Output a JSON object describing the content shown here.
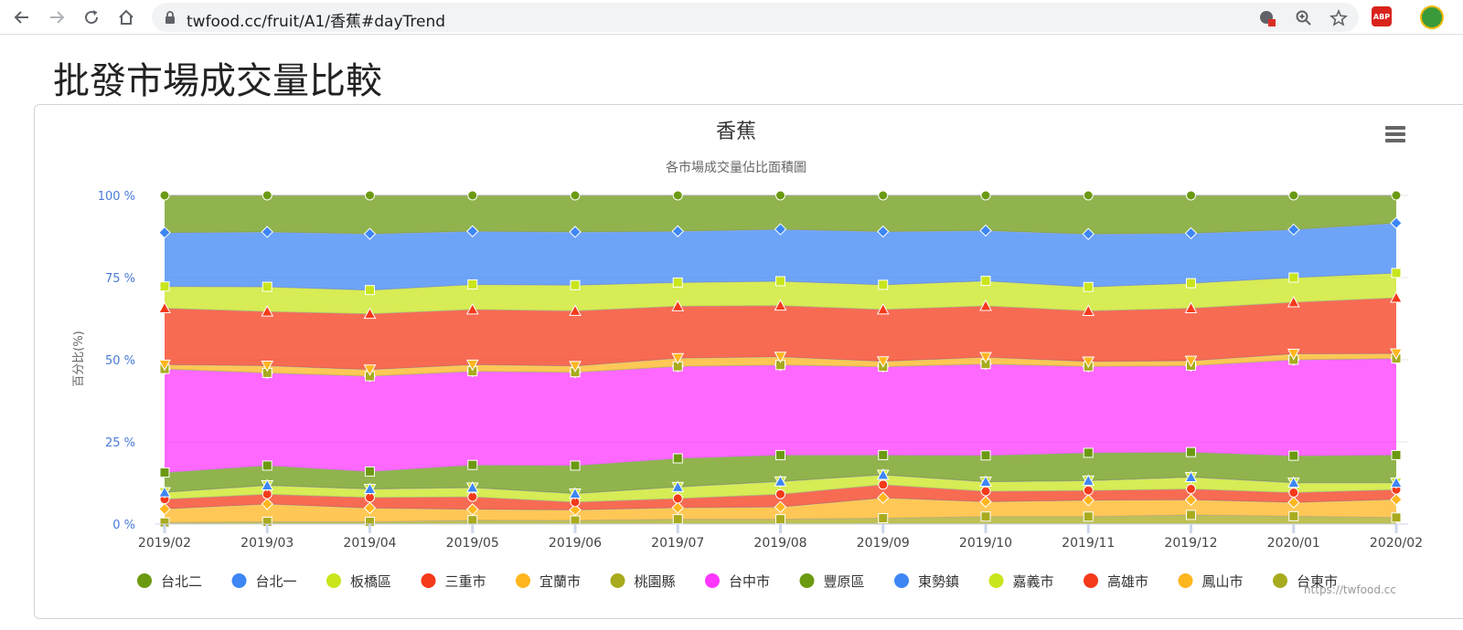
{
  "browser": {
    "url": "twfood.cc/fruit/A1/香蕉#dayTrend"
  },
  "page": {
    "title": "批發市場成交量比較"
  },
  "watermark": "https://twfood.cc",
  "chart_data": {
    "type": "area",
    "stacking": "percent",
    "title": "香蕉",
    "subtitle": "各市場成交量佔比面積圖",
    "ylabel": "百分比(%)",
    "xlabel": "",
    "ylim": [
      0,
      100
    ],
    "yticks": [
      "0 %",
      "25 %",
      "50 %",
      "75 %",
      "100 %"
    ],
    "grid": true,
    "legend_position": "bottom",
    "categories": [
      "2019/02",
      "2019/03",
      "2019/04",
      "2019/05",
      "2019/06",
      "2019/07",
      "2019/08",
      "2019/09",
      "2019/10",
      "2019/11",
      "2019/12",
      "2020/01",
      "2020/02"
    ],
    "series_stack_bottom_to_top": [
      {
        "name": "台東市",
        "color": "#a8ab1e",
        "marker": "square",
        "values": [
          0.5,
          0.7,
          0.7,
          1.2,
          1.1,
          1.5,
          1.5,
          1.8,
          2.3,
          2.3,
          2.8,
          2.4,
          2.0
        ]
      },
      {
        "name": "鳳山市",
        "color": "#ffb61e",
        "marker": "diamond",
        "values": [
          4.1,
          5.4,
          4.2,
          3.3,
          3.2,
          3.5,
          3.7,
          6.2,
          4.5,
          5.0,
          4.6,
          4.2,
          5.5
        ]
      },
      {
        "name": "高雄市",
        "color": "#f43a1a",
        "marker": "circle",
        "values": [
          3.0,
          3.0,
          3.2,
          3.8,
          2.4,
          2.8,
          3.9,
          4.0,
          3.2,
          3.0,
          3.3,
          3.0,
          3.0
        ]
      },
      {
        "name": "嘉義市",
        "color": "#c9e51c",
        "marker": "triangle-down",
        "values": [
          2.1,
          2.7,
          2.6,
          2.8,
          2.6,
          3.5,
          3.9,
          3.0,
          2.9,
          3.0,
          3.6,
          3.0,
          2.1
        ]
      },
      {
        "name": "東勢鎮",
        "color": "#3d86f4",
        "marker": "triangle",
        "values": [
          0.0,
          0.0,
          0.0,
          0.0,
          0.0,
          0.0,
          0.0,
          0.0,
          0.0,
          0.0,
          0.0,
          0.0,
          0.0
        ]
      },
      {
        "name": "豐原區",
        "color": "#6b9a11",
        "marker": "square",
        "values": [
          6.0,
          6.0,
          5.3,
          6.9,
          8.5,
          8.7,
          8.0,
          6.0,
          8.0,
          8.5,
          7.6,
          8.2,
          8.4
        ]
      },
      {
        "name": "台中市",
        "color": "#ff36ff",
        "marker": "diamond",
        "values": [
          31.5,
          28.2,
          29.0,
          28.5,
          28.4,
          28.0,
          27.4,
          26.9,
          27.8,
          26.4,
          26.3,
          29.2,
          29.4
        ]
      },
      {
        "name": "桃園縣",
        "color": "#a8ab1e",
        "marker": "square",
        "values": [
          0.0,
          0.0,
          0.0,
          0.0,
          0.0,
          0.0,
          0.0,
          0.0,
          0.0,
          0.0,
          0.0,
          0.0,
          0.0
        ]
      },
      {
        "name": "宜蘭市",
        "color": "#ffb61e",
        "marker": "triangle-down",
        "values": [
          1.3,
          2.2,
          2.0,
          2.0,
          1.9,
          2.5,
          2.5,
          1.6,
          2.1,
          1.5,
          1.5,
          1.8,
          1.5
        ]
      },
      {
        "name": "三重市",
        "color": "#f43a1a",
        "marker": "triangle",
        "values": [
          17.2,
          16.5,
          17.0,
          16.8,
          16.8,
          15.8,
          15.6,
          15.8,
          15.6,
          15.5,
          16.0,
          15.7,
          17.0
        ]
      },
      {
        "name": "板橋區",
        "color": "#c9e51c",
        "marker": "square",
        "values": [
          6.6,
          7.5,
          7.2,
          7.6,
          7.8,
          7.2,
          7.4,
          7.5,
          7.6,
          7.3,
          7.6,
          7.5,
          7.5
        ]
      },
      {
        "name": "台北一",
        "color": "#3d86f4",
        "marker": "diamond",
        "values": [
          16.4,
          16.7,
          17.1,
          16.2,
          16.2,
          15.6,
          15.8,
          16.2,
          15.3,
          16.2,
          15.2,
          14.6,
          15.2
        ]
      },
      {
        "name": "台北二",
        "color": "#6b9a11",
        "marker": "circle",
        "values": [
          11.3,
          11.1,
          11.7,
          10.9,
          11.1,
          10.9,
          10.3,
          11.0,
          10.7,
          11.8,
          11.5,
          10.4,
          8.4
        ]
      }
    ],
    "legend": [
      {
        "name": "台北二",
        "color": "#6b9a11"
      },
      {
        "name": "台北一",
        "color": "#3d86f4"
      },
      {
        "name": "板橋區",
        "color": "#c9e51c"
      },
      {
        "name": "三重市",
        "color": "#f43a1a"
      },
      {
        "name": "宜蘭市",
        "color": "#ffb61e"
      },
      {
        "name": "桃園縣",
        "color": "#a8ab1e"
      },
      {
        "name": "台中市",
        "color": "#ff36ff"
      },
      {
        "name": "豐原區",
        "color": "#6b9a11"
      },
      {
        "name": "東勢鎮",
        "color": "#3d86f4"
      },
      {
        "name": "嘉義市",
        "color": "#c9e51c"
      },
      {
        "name": "高雄市",
        "color": "#f43a1a"
      },
      {
        "name": "鳳山市",
        "color": "#ffb61e"
      },
      {
        "name": "台東市",
        "color": "#a8ab1e"
      }
    ]
  }
}
